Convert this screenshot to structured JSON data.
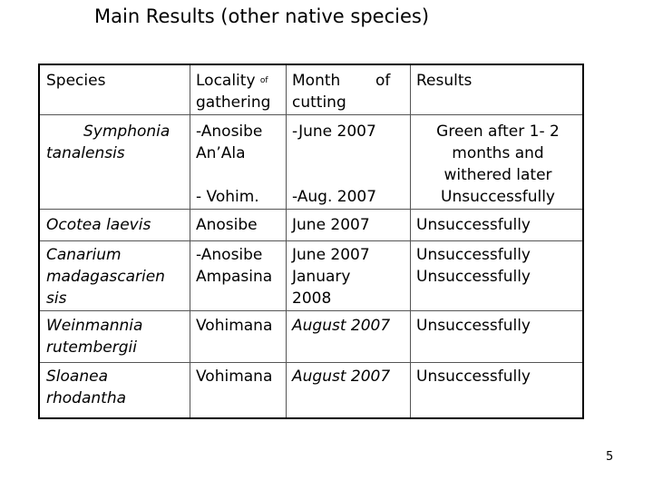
{
  "slide": {
    "title": "Main Results (other native species)",
    "page_number": "5"
  },
  "table": {
    "headers": {
      "species": "Species",
      "locality_main": "Locality",
      "locality_small": "of",
      "locality_line2": "gathering",
      "month_main": "Month",
      "month_of": "of",
      "month_line2": "cutting",
      "results": "Results"
    },
    "rows": [
      {
        "species_line1": "Symphonia",
        "species_line2": "tanalensis",
        "locality_line1": "-Anosibe",
        "locality_line2": "An’Ala",
        "locality_line3": "- Vohim.",
        "month_line1": "-June 2007",
        "month_line2": "-Aug. 2007",
        "results_line1": "Green after 1- 2",
        "results_line2": "months and",
        "results_line3": "withered later",
        "results_line4": "Unsuccessfully"
      },
      {
        "species_line1": "Ocotea laevis",
        "locality_line1": "Anosibe",
        "month_line1": "June 2007",
        "results_line1": "Unsuccessfully"
      },
      {
        "species_line1": "Canarium",
        "species_line2": "madagascarien",
        "species_line3": "sis",
        "locality_line1": "-Anosibe",
        "locality_line2": "Ampasina",
        "month_line1": "June 2007",
        "month_line2": "January",
        "month_line3": "2008",
        "results_line1": "Unsuccessfully",
        "results_line2": "Unsuccessfully"
      },
      {
        "species_line1": "Weinmannia",
        "species_line2": "rutembergii",
        "locality_line1": "Vohimana",
        "month_line1": "August 2007",
        "results_line1": "Unsuccessfully"
      },
      {
        "species_line1": "Sloanea",
        "species_line2": "rhodantha",
        "locality_line1": "Vohimana",
        "month_line1": "August 2007",
        "results_line1": "Unsuccessfully"
      }
    ]
  }
}
